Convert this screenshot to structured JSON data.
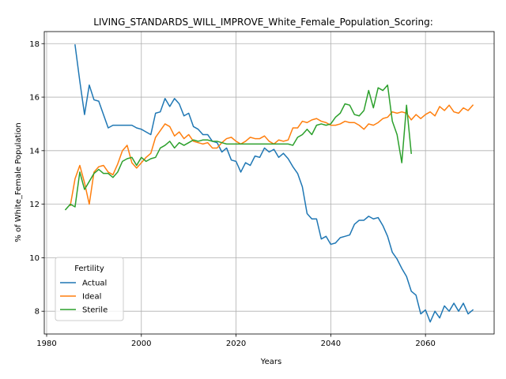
{
  "chart_data": {
    "type": "line",
    "title": "LIVING_STANDARDS_WILL_IMPROVE_White_Female_Population_Scoring:",
    "xlabel": "Years",
    "ylabel": "% of White_Female Population",
    "xlim": [
      1979.5,
      2074.5
    ],
    "ylim": [
      7.15,
      18.45
    ],
    "xticks": [
      1980,
      2000,
      2020,
      2040,
      2060
    ],
    "yticks": [
      8,
      10,
      12,
      14,
      16,
      18
    ],
    "grid": true,
    "legend": {
      "title": "Fertility",
      "placement": "lower-left"
    },
    "series": [
      {
        "name": "Actual",
        "color": "#1f77b4",
        "points": [
          [
            1986,
            17.95
          ],
          [
            1987,
            16.6
          ],
          [
            1988,
            15.35
          ],
          [
            1989,
            16.45
          ],
          [
            1990,
            15.9
          ],
          [
            1991,
            15.85
          ],
          [
            1992,
            15.35
          ],
          [
            1993,
            14.85
          ],
          [
            1994,
            14.95
          ],
          [
            1995,
            14.95
          ],
          [
            1996,
            14.95
          ],
          [
            1997,
            14.95
          ],
          [
            1998,
            14.95
          ],
          [
            1999,
            14.85
          ],
          [
            2000,
            14.8
          ],
          [
            2001,
            14.7
          ],
          [
            2002,
            14.6
          ],
          [
            2003,
            15.4
          ],
          [
            2004,
            15.45
          ],
          [
            2005,
            15.95
          ],
          [
            2006,
            15.65
          ],
          [
            2007,
            15.95
          ],
          [
            2008,
            15.75
          ],
          [
            2009,
            15.3
          ],
          [
            2010,
            15.4
          ],
          [
            2011,
            14.9
          ],
          [
            2012,
            14.8
          ],
          [
            2013,
            14.6
          ],
          [
            2014,
            14.6
          ],
          [
            2015,
            14.35
          ],
          [
            2016,
            14.3
          ],
          [
            2017,
            13.95
          ],
          [
            2018,
            14.1
          ],
          [
            2019,
            13.65
          ],
          [
            2020,
            13.6
          ],
          [
            2021,
            13.2
          ],
          [
            2022,
            13.55
          ],
          [
            2023,
            13.45
          ],
          [
            2024,
            13.8
          ],
          [
            2025,
            13.75
          ],
          [
            2026,
            14.1
          ],
          [
            2027,
            13.95
          ],
          [
            2028,
            14.05
          ],
          [
            2029,
            13.75
          ],
          [
            2030,
            13.9
          ],
          [
            2031,
            13.7
          ],
          [
            2032,
            13.4
          ],
          [
            2033,
            13.15
          ],
          [
            2034,
            12.65
          ],
          [
            2035,
            11.65
          ],
          [
            2036,
            11.45
          ],
          [
            2037,
            11.45
          ],
          [
            2038,
            10.7
          ],
          [
            2039,
            10.8
          ],
          [
            2040,
            10.5
          ],
          [
            2041,
            10.55
          ],
          [
            2042,
            10.75
          ],
          [
            2043,
            10.8
          ],
          [
            2044,
            10.85
          ],
          [
            2045,
            11.25
          ],
          [
            2046,
            11.4
          ],
          [
            2047,
            11.4
          ],
          [
            2048,
            11.55
          ],
          [
            2049,
            11.45
          ],
          [
            2050,
            11.5
          ],
          [
            2051,
            11.2
          ],
          [
            2052,
            10.8
          ],
          [
            2053,
            10.2
          ],
          [
            2054,
            9.95
          ],
          [
            2055,
            9.6
          ],
          [
            2056,
            9.3
          ],
          [
            2057,
            8.75
          ],
          [
            2058,
            8.6
          ],
          [
            2059,
            7.9
          ],
          [
            2060,
            8.05
          ],
          [
            2061,
            7.6
          ],
          [
            2062,
            8.0
          ],
          [
            2063,
            7.75
          ],
          [
            2064,
            8.2
          ],
          [
            2065,
            8.0
          ],
          [
            2066,
            8.3
          ],
          [
            2067,
            8.0
          ],
          [
            2068,
            8.3
          ],
          [
            2069,
            7.9
          ],
          [
            2070,
            8.05
          ]
        ]
      },
      {
        "name": "Ideal",
        "color": "#ff7f0e",
        "points": [
          [
            1985,
            11.95
          ],
          [
            1986,
            12.95
          ],
          [
            1987,
            13.45
          ],
          [
            1988,
            12.8
          ],
          [
            1989,
            12.0
          ],
          [
            1990,
            13.2
          ],
          [
            1991,
            13.4
          ],
          [
            1992,
            13.45
          ],
          [
            1993,
            13.2
          ],
          [
            1994,
            13.1
          ],
          [
            1995,
            13.5
          ],
          [
            1996,
            14.0
          ],
          [
            1997,
            14.2
          ],
          [
            1998,
            13.55
          ],
          [
            1999,
            13.35
          ],
          [
            2000,
            13.55
          ],
          [
            2001,
            13.75
          ],
          [
            2002,
            13.9
          ],
          [
            2003,
            14.5
          ],
          [
            2004,
            14.75
          ],
          [
            2005,
            15.0
          ],
          [
            2006,
            14.9
          ],
          [
            2007,
            14.55
          ],
          [
            2008,
            14.7
          ],
          [
            2009,
            14.45
          ],
          [
            2010,
            14.6
          ],
          [
            2011,
            14.35
          ],
          [
            2012,
            14.3
          ],
          [
            2013,
            14.25
          ],
          [
            2014,
            14.3
          ],
          [
            2015,
            14.1
          ],
          [
            2016,
            14.1
          ],
          [
            2017,
            14.3
          ],
          [
            2018,
            14.45
          ],
          [
            2019,
            14.5
          ],
          [
            2020,
            14.35
          ],
          [
            2021,
            14.25
          ],
          [
            2022,
            14.35
          ],
          [
            2023,
            14.5
          ],
          [
            2024,
            14.45
          ],
          [
            2025,
            14.45
          ],
          [
            2026,
            14.55
          ],
          [
            2027,
            14.35
          ],
          [
            2028,
            14.25
          ],
          [
            2029,
            14.4
          ],
          [
            2030,
            14.35
          ],
          [
            2031,
            14.4
          ],
          [
            2032,
            14.85
          ],
          [
            2033,
            14.85
          ],
          [
            2034,
            15.1
          ],
          [
            2035,
            15.05
          ],
          [
            2036,
            15.15
          ],
          [
            2037,
            15.2
          ],
          [
            2038,
            15.1
          ],
          [
            2039,
            15.05
          ],
          [
            2040,
            14.95
          ],
          [
            2041,
            14.95
          ],
          [
            2042,
            15.0
          ],
          [
            2043,
            15.1
          ],
          [
            2044,
            15.05
          ],
          [
            2045,
            15.05
          ],
          [
            2046,
            14.95
          ],
          [
            2047,
            14.8
          ],
          [
            2048,
            15.0
          ],
          [
            2049,
            14.95
          ],
          [
            2050,
            15.05
          ],
          [
            2051,
            15.2
          ],
          [
            2052,
            15.25
          ],
          [
            2053,
            15.45
          ],
          [
            2054,
            15.4
          ],
          [
            2055,
            15.45
          ],
          [
            2056,
            15.4
          ],
          [
            2057,
            15.15
          ],
          [
            2058,
            15.35
          ],
          [
            2059,
            15.2
          ],
          [
            2060,
            15.35
          ],
          [
            2061,
            15.45
          ],
          [
            2062,
            15.3
          ],
          [
            2063,
            15.65
          ],
          [
            2064,
            15.5
          ],
          [
            2065,
            15.7
          ],
          [
            2066,
            15.45
          ],
          [
            2067,
            15.4
          ],
          [
            2068,
            15.6
          ],
          [
            2069,
            15.5
          ],
          [
            2070,
            15.7
          ]
        ]
      },
      {
        "name": "Sterile",
        "color": "#2ca02c",
        "points": [
          [
            1984,
            11.8
          ],
          [
            1985,
            12.0
          ],
          [
            1986,
            11.9
          ],
          [
            1987,
            13.2
          ],
          [
            1988,
            12.55
          ],
          [
            1989,
            12.85
          ],
          [
            1990,
            13.15
          ],
          [
            1991,
            13.3
          ],
          [
            1992,
            13.15
          ],
          [
            1993,
            13.15
          ],
          [
            1994,
            13.0
          ],
          [
            1995,
            13.2
          ],
          [
            1996,
            13.6
          ],
          [
            1997,
            13.7
          ],
          [
            1998,
            13.75
          ],
          [
            1999,
            13.45
          ],
          [
            2000,
            13.75
          ],
          [
            2001,
            13.6
          ],
          [
            2002,
            13.7
          ],
          [
            2003,
            13.75
          ],
          [
            2004,
            14.1
          ],
          [
            2005,
            14.2
          ],
          [
            2006,
            14.35
          ],
          [
            2007,
            14.1
          ],
          [
            2008,
            14.3
          ],
          [
            2009,
            14.2
          ],
          [
            2010,
            14.3
          ],
          [
            2011,
            14.4
          ],
          [
            2012,
            14.35
          ],
          [
            2013,
            14.4
          ],
          [
            2014,
            14.4
          ],
          [
            2015,
            14.35
          ],
          [
            2016,
            14.35
          ],
          [
            2017,
            14.3
          ],
          [
            2018,
            14.25
          ],
          [
            2019,
            14.25
          ],
          [
            2020,
            14.25
          ],
          [
            2021,
            14.25
          ],
          [
            2022,
            14.25
          ],
          [
            2023,
            14.25
          ],
          [
            2024,
            14.25
          ],
          [
            2025,
            14.25
          ],
          [
            2026,
            14.25
          ],
          [
            2027,
            14.25
          ],
          [
            2028,
            14.25
          ],
          [
            2029,
            14.25
          ],
          [
            2030,
            14.25
          ],
          [
            2031,
            14.25
          ],
          [
            2032,
            14.2
          ],
          [
            2033,
            14.5
          ],
          [
            2034,
            14.6
          ],
          [
            2035,
            14.8
          ],
          [
            2036,
            14.6
          ],
          [
            2037,
            14.95
          ],
          [
            2038,
            15.0
          ],
          [
            2039,
            14.95
          ],
          [
            2040,
            15.0
          ],
          [
            2041,
            15.25
          ],
          [
            2042,
            15.4
          ],
          [
            2043,
            15.75
          ],
          [
            2044,
            15.7
          ],
          [
            2045,
            15.35
          ],
          [
            2046,
            15.3
          ],
          [
            2047,
            15.5
          ],
          [
            2048,
            16.25
          ],
          [
            2049,
            15.6
          ],
          [
            2050,
            16.35
          ],
          [
            2051,
            16.25
          ],
          [
            2052,
            16.45
          ],
          [
            2053,
            15.1
          ],
          [
            2054,
            14.6
          ],
          [
            2055,
            13.55
          ],
          [
            2056,
            15.7
          ],
          [
            2057,
            13.9
          ]
        ]
      }
    ]
  }
}
